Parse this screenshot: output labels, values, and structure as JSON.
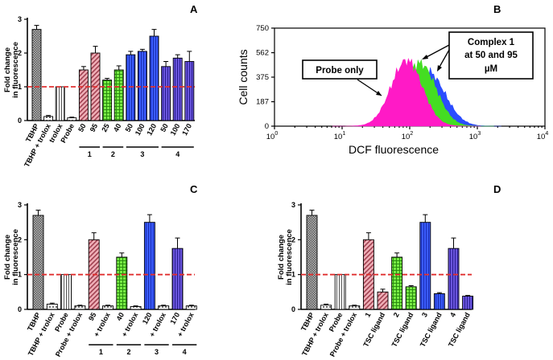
{
  "chart_data": [
    {
      "panel": "A",
      "type": "bar",
      "ylabel_lines": [
        "Fold change",
        "in fluorescence"
      ],
      "ylim": [
        0,
        3
      ],
      "yticks": [
        "0",
        "1",
        "2",
        "3"
      ],
      "reference_line": 1,
      "categories": [
        "TBHP",
        "TBHP + trolox",
        "trolox",
        "Probe",
        "50",
        "95",
        "25",
        "40",
        "50",
        "100",
        "120",
        "50",
        "100",
        "170"
      ],
      "values": [
        2.7,
        0.12,
        1.0,
        0.08,
        1.5,
        2.0,
        1.2,
        1.5,
        1.95,
        2.05,
        2.5,
        1.6,
        1.85,
        1.75
      ],
      "errors": [
        0.12,
        0.03,
        0.0,
        0.02,
        0.1,
        0.2,
        0.05,
        0.12,
        0.1,
        0.06,
        0.2,
        0.15,
        0.1,
        0.3
      ],
      "groups": [
        {
          "label": "1",
          "from": 4,
          "to": 5
        },
        {
          "label": "2",
          "from": 6,
          "to": 7
        },
        {
          "label": "3",
          "from": 8,
          "to": 10
        },
        {
          "label": "4",
          "from": 11,
          "to": 13
        }
      ]
    },
    {
      "panel": "B",
      "type": "area",
      "xlabel": "DCF fluorescence",
      "ylabel": "Cell counts",
      "x_scale": "log",
      "xlim": [
        1,
        10000
      ],
      "ylim": [
        0,
        750
      ],
      "xticks": [
        "10",
        "10",
        "10",
        "10",
        "10"
      ],
      "xtick_exponents": [
        "0",
        "1",
        "2",
        "3",
        "4"
      ],
      "yticks": [
        "0",
        "187",
        "375",
        "562",
        "750"
      ],
      "series": [
        {
          "name": "Probe only",
          "color": "#ff1ac6",
          "peak_x": 90,
          "peak_y": 500
        },
        {
          "name": "Complex 1 at 50 µM",
          "color": "#44dd22",
          "peak_x": 140,
          "peak_y": 480
        },
        {
          "name": "Complex 1 at 95 µM",
          "color": "#2b4dff",
          "peak_x": 180,
          "peak_y": 420
        }
      ],
      "annotations": {
        "probe": "Probe only",
        "complex_line1": "Complex 1",
        "complex_line2": "at 50 and 95",
        "complex_line3": "µM"
      }
    },
    {
      "panel": "C",
      "type": "bar",
      "ylabel_lines": [
        "Fold change",
        "in fluorescence"
      ],
      "ylim": [
        0,
        3
      ],
      "yticks": [
        "0",
        "1",
        "2",
        "3"
      ],
      "reference_line": 1,
      "categories": [
        "TBHP",
        "TBHP + trolox",
        "Probe",
        "Probe + trolox",
        "95",
        "+ trolox",
        "40",
        "+ trolox",
        "120",
        "+ trolox",
        "170",
        "+ trolox"
      ],
      "values": [
        2.7,
        0.15,
        1.0,
        0.1,
        2.0,
        0.1,
        1.5,
        0.08,
        2.5,
        0.1,
        1.75,
        0.1
      ],
      "errors": [
        0.15,
        0.03,
        0.0,
        0.02,
        0.2,
        0.02,
        0.12,
        0.02,
        0.22,
        0.02,
        0.3,
        0.02
      ],
      "groups": [
        {
          "label": "1",
          "from": 4,
          "to": 5
        },
        {
          "label": "2",
          "from": 6,
          "to": 7
        },
        {
          "label": "3",
          "from": 8,
          "to": 9
        },
        {
          "label": "4",
          "from": 10,
          "to": 11
        }
      ]
    },
    {
      "panel": "D",
      "type": "bar",
      "ylabel_lines": [
        "Fold change",
        "in fluorescence"
      ],
      "ylim": [
        0,
        3
      ],
      "yticks": [
        "0",
        "1",
        "2",
        "3"
      ],
      "reference_line": 1,
      "categories": [
        "TBHP",
        "TBHP + trolox",
        "Probe",
        "Probe + trolox",
        "1",
        "TSC ligand",
        "2",
        "TSC ligand",
        "3",
        "TSC ligand",
        "4",
        "TSC ligand"
      ],
      "values": [
        2.7,
        0.12,
        1.0,
        0.1,
        2.0,
        0.5,
        1.5,
        0.65,
        2.5,
        0.45,
        1.75,
        0.38
      ],
      "errors": [
        0.15,
        0.03,
        0.0,
        0.02,
        0.2,
        0.08,
        0.12,
        0.03,
        0.22,
        0.03,
        0.3,
        0.02
      ],
      "groups": []
    }
  ],
  "palette": {
    "tbhp": "#c8c8c8",
    "trolox": "#ffffff",
    "c1": "#e8a0a8",
    "c2": "#66e03a",
    "c3": "#3355ee",
    "c4": "#5544cc",
    "refline": "#e03030"
  }
}
